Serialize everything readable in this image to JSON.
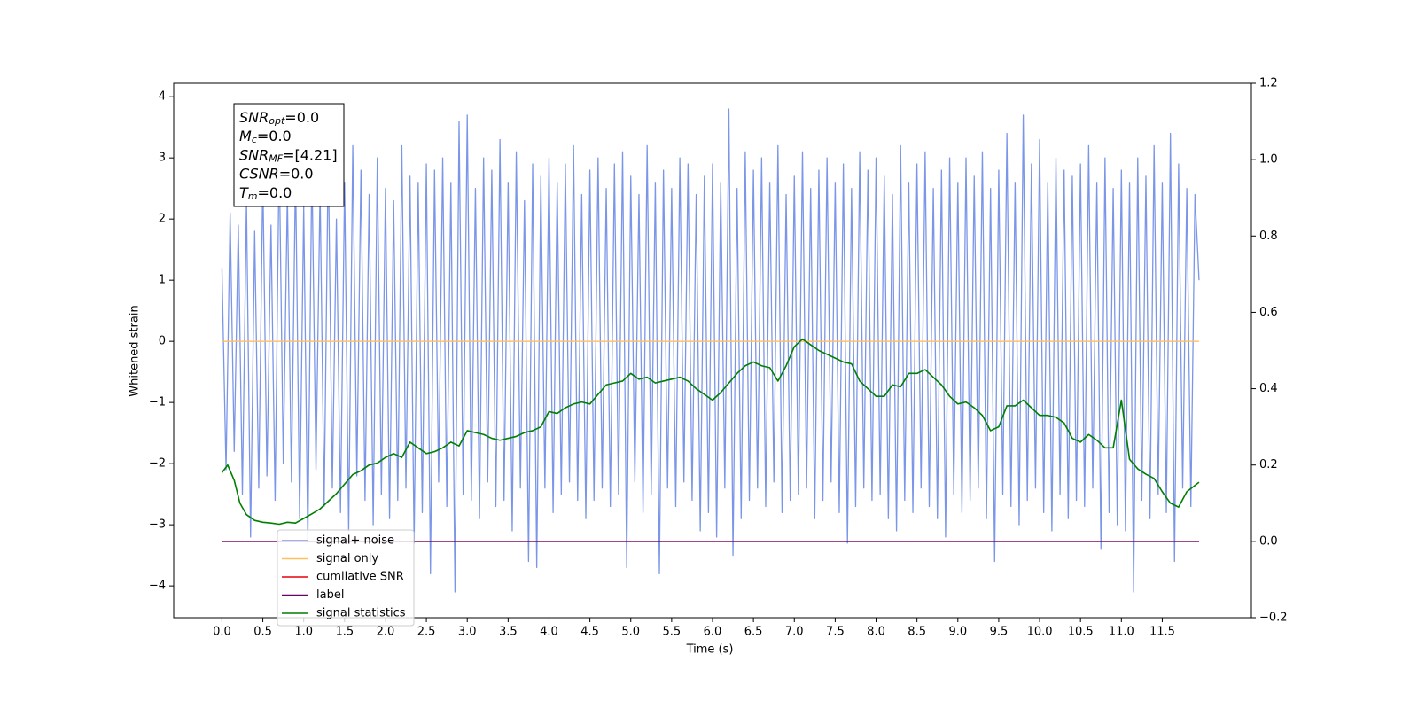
{
  "chart_data": {
    "type": "line",
    "xlabel": "Time (s)",
    "ylabel": "Whitened strain",
    "xlim": [
      -0.59,
      12.59
    ],
    "ylim": [
      -4.52,
      4.22
    ],
    "y2lim": [
      -0.2,
      1.2
    ],
    "xticks": [
      {
        "value": 0,
        "label": "0.0"
      },
      0.5,
      {
        "value": 1,
        "label": "1.0"
      },
      1.5,
      {
        "value": 2,
        "label": "2.0"
      },
      2.5,
      {
        "value": 3,
        "label": "3.0"
      },
      3.5,
      {
        "value": 4,
        "label": "4.0"
      },
      4.5,
      {
        "value": 5,
        "label": "5.0"
      },
      5.5,
      {
        "value": 6,
        "label": "6.0"
      },
      6.5,
      {
        "value": 7,
        "label": "7.0"
      },
      7.5,
      {
        "value": 8,
        "label": "8.0"
      },
      8.5,
      {
        "value": 9,
        "label": "9.0"
      },
      9.5,
      {
        "value": 10,
        "label": "10.0"
      },
      10.5,
      {
        "value": 11,
        "label": "11.0"
      },
      11.5
    ],
    "yticks": [
      {
        "value": -4,
        "label": "−4"
      },
      {
        "value": -3,
        "label": "−3"
      },
      {
        "value": -2,
        "label": "−2"
      },
      {
        "value": -1,
        "label": "−1"
      },
      0,
      1,
      2,
      3,
      4
    ],
    "y2ticks": [
      {
        "value": -0.2,
        "label": "−0.2"
      },
      {
        "value": 0,
        "label": "0.0"
      },
      0.2,
      0.4,
      0.6,
      0.8,
      {
        "value": 1,
        "label": "1.0"
      },
      1.2
    ],
    "legend": "lower left",
    "annotation": [
      {
        "name": "SNR",
        "sub": "opt",
        "value": "=0.0"
      },
      {
        "name": "M",
        "sub": "c",
        "value": "=0.0"
      },
      {
        "name": "SNR",
        "sub": "MF",
        "value": "=[4.21]"
      },
      {
        "name": "CSNR",
        "value": "=0.0"
      },
      {
        "name": "T",
        "sub": "m",
        "value": "=0.0"
      }
    ],
    "series": [
      {
        "name": "signal+ noise",
        "color": "#7b96e8",
        "x": [
          0,
          0.05,
          0.1,
          0.15,
          0.2,
          0.25,
          0.3,
          0.35,
          0.4,
          0.45,
          0.5,
          0.55,
          0.6,
          0.65,
          0.7,
          0.75,
          0.8,
          0.85,
          0.9,
          0.95,
          1,
          1.05,
          1.1,
          1.15,
          1.2,
          1.25,
          1.3,
          1.35,
          1.4,
          1.45,
          1.5,
          1.55,
          1.6,
          1.65,
          1.7,
          1.75,
          1.8,
          1.85,
          1.9,
          1.95,
          2,
          2.05,
          2.1,
          2.15,
          2.2,
          2.25,
          2.3,
          2.35,
          2.4,
          2.45,
          2.5,
          2.55,
          2.6,
          2.65,
          2.7,
          2.75,
          2.8,
          2.85,
          2.9,
          2.95,
          3,
          3.05,
          3.1,
          3.15,
          3.2,
          3.25,
          3.3,
          3.35,
          3.4,
          3.45,
          3.5,
          3.55,
          3.6,
          3.65,
          3.7,
          3.75,
          3.8,
          3.85,
          3.9,
          3.95,
          4,
          4.05,
          4.1,
          4.15,
          4.2,
          4.25,
          4.3,
          4.35,
          4.4,
          4.45,
          4.5,
          4.55,
          4.6,
          4.65,
          4.7,
          4.75,
          4.8,
          4.85,
          4.9,
          4.95,
          5,
          5.05,
          5.1,
          5.15,
          5.2,
          5.25,
          5.3,
          5.35,
          5.4,
          5.45,
          5.5,
          5.55,
          5.6,
          5.65,
          5.7,
          5.75,
          5.8,
          5.85,
          5.9,
          5.95,
          6,
          6.05,
          6.1,
          6.15,
          6.2,
          6.25,
          6.3,
          6.35,
          6.4,
          6.45,
          6.5,
          6.55,
          6.6,
          6.65,
          6.7,
          6.75,
          6.8,
          6.85,
          6.9,
          6.95,
          7,
          7.05,
          7.1,
          7.15,
          7.2,
          7.25,
          7.3,
          7.35,
          7.4,
          7.45,
          7.5,
          7.55,
          7.6,
          7.65,
          7.7,
          7.75,
          7.8,
          7.85,
          7.9,
          7.95,
          8,
          8.05,
          8.1,
          8.15,
          8.2,
          8.25,
          8.3,
          8.35,
          8.4,
          8.45,
          8.5,
          8.55,
          8.6,
          8.65,
          8.7,
          8.75,
          8.8,
          8.85,
          8.9,
          8.95,
          9,
          9.05,
          9.1,
          9.15,
          9.2,
          9.25,
          9.3,
          9.35,
          9.4,
          9.45,
          9.5,
          9.55,
          9.6,
          9.65,
          9.7,
          9.75,
          9.8,
          9.85,
          9.9,
          9.95,
          10,
          10.05,
          10.1,
          10.15,
          10.2,
          10.25,
          10.3,
          10.35,
          10.4,
          10.45,
          10.5,
          10.55,
          10.6,
          10.65,
          10.7,
          10.75,
          10.8,
          10.85,
          10.9,
          10.95,
          11,
          11.05,
          11.1,
          11.15,
          11.2,
          11.25,
          11.3,
          11.35,
          11.4,
          11.45,
          11.5,
          11.55,
          11.6,
          11.65,
          11.7,
          11.75,
          11.8,
          11.85,
          11.9,
          11.95
        ],
        "values": [
          1.2,
          -2.1,
          2.1,
          -1.8,
          1.9,
          -2.5,
          2.3,
          -3.2,
          1.8,
          -2.4,
          2.7,
          -2.2,
          1.9,
          -2.6,
          3.1,
          -2.0,
          2.4,
          -2.3,
          2.8,
          -2.9,
          2.2,
          -3.3,
          2.9,
          -2.1,
          2.5,
          -2.7,
          3.1,
          -2.4,
          2.0,
          -2.8,
          2.6,
          -3.1,
          3.2,
          -2.2,
          2.8,
          -2.6,
          2.4,
          -3.0,
          3.0,
          -2.5,
          2.5,
          -2.9,
          2.3,
          -2.6,
          3.2,
          -2.4,
          2.7,
          -3.3,
          2.6,
          -2.8,
          2.9,
          -3.8,
          2.8,
          -2.3,
          3.0,
          -2.7,
          2.6,
          -4.1,
          3.6,
          -2.5,
          3.7,
          -2.6,
          2.5,
          -2.9,
          3.0,
          -2.3,
          2.8,
          -2.7,
          3.3,
          -2.6,
          2.6,
          -3.1,
          3.1,
          -2.4,
          2.3,
          -3.6,
          2.9,
          -3.7,
          2.7,
          -2.4,
          3.0,
          -2.8,
          2.6,
          -2.5,
          2.9,
          -2.3,
          3.2,
          -2.6,
          2.4,
          -2.9,
          2.8,
          -2.6,
          3.0,
          -2.4,
          2.5,
          -2.7,
          2.9,
          -2.5,
          3.1,
          -3.7,
          2.7,
          -2.3,
          2.4,
          -2.8,
          3.2,
          -2.5,
          2.6,
          -3.8,
          2.8,
          -2.4,
          2.5,
          -2.7,
          3.0,
          -2.3,
          2.9,
          -2.6,
          2.4,
          -3.1,
          2.7,
          -2.8,
          2.9,
          -3.2,
          2.6,
          -2.4,
          3.8,
          -3.5,
          2.5,
          -2.9,
          3.1,
          -2.6,
          2.8,
          -2.4,
          3.0,
          -2.7,
          2.6,
          -2.3,
          3.2,
          -2.8,
          2.4,
          -2.6,
          2.7,
          -2.5,
          3.1,
          -2.4,
          2.5,
          -2.9,
          2.8,
          -2.6,
          3.0,
          -2.3,
          2.6,
          -2.8,
          2.9,
          -3.3,
          2.5,
          -2.7,
          3.1,
          -2.4,
          2.8,
          -2.6,
          3.0,
          -2.5,
          2.7,
          -2.9,
          2.4,
          -3.1,
          3.2,
          -2.6,
          2.6,
          -2.8,
          2.9,
          -2.4,
          3.1,
          -2.7,
          2.5,
          -2.9,
          2.8,
          -3.2,
          3.0,
          -2.5,
          2.6,
          -2.8,
          3.0,
          -2.6,
          2.7,
          -2.4,
          3.1,
          -2.9,
          2.5,
          -3.6,
          2.8,
          -2.5,
          3.4,
          -2.7,
          2.6,
          -3.0,
          3.7,
          -2.6,
          2.9,
          -2.4,
          3.3,
          -2.8,
          2.6,
          -3.1,
          3.0,
          -2.5,
          2.8,
          -2.9,
          2.7,
          -2.6,
          2.9,
          -2.7,
          3.2,
          -2.4,
          2.6,
          -3.4,
          3.0,
          -2.8,
          2.5,
          -3.0,
          2.8,
          -3.1,
          2.6,
          -4.1,
          3.0,
          -2.6,
          2.7,
          -2.9,
          3.2,
          -2.5,
          2.6,
          -2.8,
          3.4,
          -3.6,
          2.9,
          -2.4,
          2.5,
          -2.7,
          2.4,
          1.0
        ]
      },
      {
        "name": "signal only",
        "color": "#ffbf60",
        "x": [
          0,
          11.95
        ],
        "values": [
          0,
          0
        ]
      },
      {
        "name": "cumilative SNR",
        "color": "#e8000b",
        "axis": "y2",
        "x": [
          0,
          11.95
        ],
        "values": [
          0,
          0
        ]
      },
      {
        "name": "label",
        "color": "#6a006a",
        "axis": "y2",
        "x": [
          0,
          11.95
        ],
        "values": [
          0,
          0
        ]
      },
      {
        "name": "signal statistics",
        "color": "#007f00",
        "axis": "y2",
        "x": [
          0,
          0.07,
          0.15,
          0.22,
          0.3,
          0.4,
          0.5,
          0.6,
          0.7,
          0.8,
          0.9,
          1.0,
          1.1,
          1.2,
          1.3,
          1.4,
          1.5,
          1.6,
          1.7,
          1.8,
          1.9,
          2.0,
          2.1,
          2.2,
          2.3,
          2.4,
          2.5,
          2.6,
          2.7,
          2.8,
          2.9,
          3.0,
          3.1,
          3.2,
          3.3,
          3.4,
          3.5,
          3.6,
          3.7,
          3.8,
          3.9,
          4.0,
          4.1,
          4.2,
          4.3,
          4.4,
          4.5,
          4.6,
          4.7,
          4.8,
          4.9,
          5.0,
          5.1,
          5.2,
          5.3,
          5.4,
          5.5,
          5.6,
          5.7,
          5.8,
          5.9,
          6.0,
          6.1,
          6.2,
          6.3,
          6.4,
          6.5,
          6.6,
          6.7,
          6.8,
          6.9,
          7.0,
          7.1,
          7.2,
          7.3,
          7.4,
          7.5,
          7.6,
          7.7,
          7.8,
          7.9,
          8.0,
          8.1,
          8.2,
          8.3,
          8.4,
          8.5,
          8.6,
          8.7,
          8.8,
          8.9,
          9.0,
          9.1,
          9.2,
          9.3,
          9.4,
          9.5,
          9.6,
          9.7,
          9.8,
          9.9,
          10.0,
          10.1,
          10.2,
          10.3,
          10.4,
          10.5,
          10.6,
          10.7,
          10.8,
          10.9,
          11.0,
          11.1,
          11.2,
          11.3,
          11.4,
          11.5,
          11.6,
          11.7,
          11.8,
          11.95
        ],
        "values": [
          0.18,
          0.2,
          0.16,
          0.1,
          0.07,
          0.055,
          0.05,
          0.048,
          0.045,
          0.05,
          0.048,
          0.06,
          0.072,
          0.085,
          0.105,
          0.125,
          0.15,
          0.175,
          0.185,
          0.2,
          0.205,
          0.22,
          0.23,
          0.22,
          0.26,
          0.245,
          0.23,
          0.235,
          0.245,
          0.26,
          0.25,
          0.29,
          0.285,
          0.28,
          0.27,
          0.265,
          0.27,
          0.275,
          0.285,
          0.29,
          0.3,
          0.34,
          0.335,
          0.35,
          0.36,
          0.365,
          0.36,
          0.385,
          0.41,
          0.415,
          0.42,
          0.44,
          0.425,
          0.43,
          0.415,
          0.42,
          0.425,
          0.43,
          0.42,
          0.4,
          0.385,
          0.37,
          0.39,
          0.415,
          0.44,
          0.46,
          0.47,
          0.46,
          0.455,
          0.42,
          0.46,
          0.51,
          0.53,
          0.515,
          0.5,
          0.49,
          0.48,
          0.47,
          0.465,
          0.42,
          0.4,
          0.38,
          0.38,
          0.41,
          0.405,
          0.44,
          0.44,
          0.45,
          0.43,
          0.41,
          0.38,
          0.36,
          0.365,
          0.35,
          0.33,
          0.29,
          0.3,
          0.355,
          0.355,
          0.37,
          0.35,
          0.33,
          0.33,
          0.325,
          0.31,
          0.27,
          0.26,
          0.28,
          0.265,
          0.245,
          0.245,
          0.37,
          0.215,
          0.19,
          0.176,
          0.165,
          0.13,
          0.1,
          0.09,
          0.13,
          0.155
        ]
      }
    ]
  }
}
